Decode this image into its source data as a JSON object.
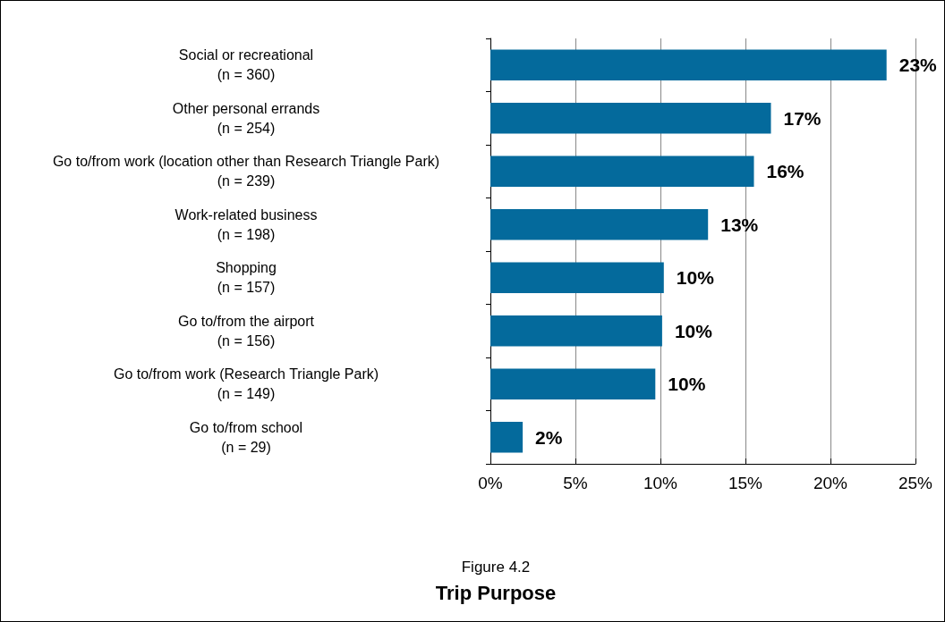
{
  "chart_data": {
    "type": "bar",
    "orientation": "horizontal",
    "title": "Trip Purpose",
    "subtitle": "Figure 4.2",
    "categories": [
      "Social or recreational\n(n = 360)",
      "Other personal errands\n(n = 254)",
      "Go to/from work (location other than Research Triangle Park)\n(n = 239)",
      "Work-related business\n(n = 198)",
      "Shopping\n(n = 157)",
      "Go to/from the airport\n(n = 156)",
      "Go to/from work (Research Triangle Park)\n(n = 149)",
      "Go to/from school\n(n = 29)"
    ],
    "values": [
      23.3,
      16.5,
      15.5,
      12.8,
      10.2,
      10.1,
      9.7,
      1.9
    ],
    "value_labels": [
      "23%",
      "17%",
      "16%",
      "13%",
      "10%",
      "10%",
      "10%",
      "2%"
    ],
    "color": "#046a9c",
    "xlim": [
      0,
      25
    ],
    "xticks": [
      {
        "value": 0,
        "label": "0%"
      },
      {
        "value": 5,
        "label": "5%"
      },
      {
        "value": 10,
        "label": "10%"
      },
      {
        "value": 15,
        "label": "15%"
      },
      {
        "value": 20,
        "label": "20%"
      },
      {
        "value": 25,
        "label": "25%"
      }
    ],
    "grid": "x"
  }
}
